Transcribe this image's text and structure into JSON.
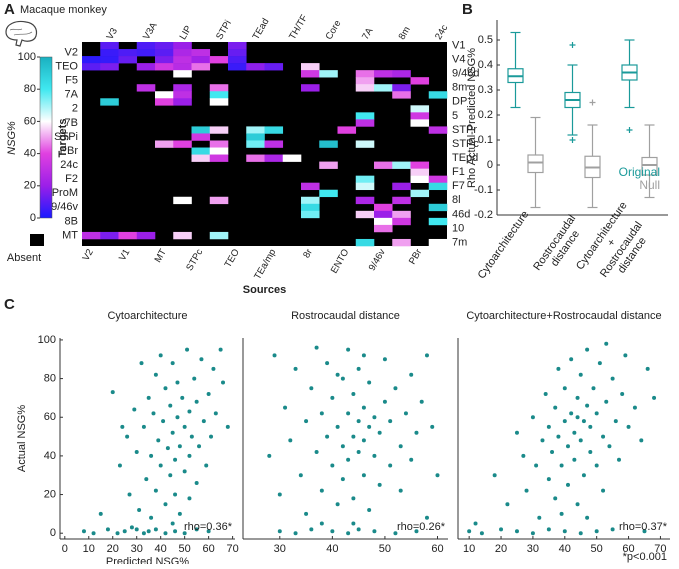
{
  "chart_data": [
    {
      "type": "heatmap",
      "panel_label": "A",
      "title": "Macaque monkey",
      "xlabel": "Sources",
      "ylabel": "Targets",
      "colorbar_label": "NSG%",
      "absent_label": "Absent",
      "absent_color": "#000000",
      "colormap": [
        "#1a1aff",
        "#9b1fe8",
        "#e040e0",
        "#ffffff",
        "#40e8f0",
        "#1ab0c0"
      ],
      "clim": [
        0,
        100
      ],
      "cticks": [
        0,
        20,
        40,
        60,
        80,
        100
      ],
      "targets": [
        "V1",
        "V2",
        "V4",
        "TEO",
        "9/46d",
        "F5",
        "8m",
        "7A",
        "DP",
        "2",
        "5",
        "7B",
        "STPr",
        "STPi",
        "STPc",
        "PBr",
        "TEpd",
        "24c",
        "F1",
        "F2",
        "F7",
        "ProM",
        "8l",
        "9/46v",
        "46d",
        "8B",
        "10",
        "MT",
        "7m"
      ],
      "sources": [
        "V2",
        "V3",
        "V1",
        "V3A",
        "MT",
        "LIP",
        "STPc",
        "STPi",
        "TEO",
        "TEad",
        "TEa/mp",
        "TH/TF",
        "8r",
        "Core",
        "ENTO",
        "7A",
        "9/46v",
        "8m",
        "PBr",
        "24c"
      ],
      "values": [
        [
          null,
          10,
          null,
          8,
          12,
          20,
          null,
          null,
          15,
          null,
          null,
          null,
          null,
          null,
          null,
          null,
          null,
          null,
          null,
          null
        ],
        [
          null,
          5,
          8,
          6,
          10,
          25,
          30,
          null,
          12,
          null,
          null,
          null,
          null,
          null,
          null,
          null,
          null,
          null,
          null,
          null
        ],
        [
          3,
          4,
          12,
          null,
          15,
          30,
          22,
          40,
          8,
          null,
          null,
          null,
          null,
          null,
          null,
          null,
          null,
          null,
          null,
          null
        ],
        [
          10,
          15,
          null,
          20,
          35,
          28,
          45,
          null,
          5,
          18,
          12,
          null,
          55,
          null,
          null,
          null,
          null,
          null,
          null,
          null
        ],
        [
          null,
          null,
          null,
          null,
          null,
          60,
          null,
          null,
          null,
          null,
          null,
          null,
          35,
          70,
          null,
          45,
          30,
          25,
          null,
          null
        ],
        [
          null,
          null,
          null,
          null,
          null,
          null,
          null,
          null,
          null,
          null,
          null,
          null,
          null,
          null,
          null,
          50,
          null,
          null,
          40,
          null
        ],
        [
          null,
          null,
          null,
          30,
          null,
          25,
          null,
          45,
          null,
          null,
          null,
          null,
          20,
          null,
          null,
          55,
          70,
          15,
          null,
          null
        ],
        [
          null,
          null,
          null,
          null,
          60,
          30,
          null,
          80,
          null,
          null,
          null,
          null,
          null,
          null,
          null,
          null,
          null,
          45,
          null,
          85
        ],
        [
          null,
          90,
          null,
          null,
          40,
          20,
          null,
          60,
          null,
          null,
          null,
          null,
          null,
          null,
          null,
          null,
          null,
          null,
          null,
          null
        ],
        [
          null,
          null,
          null,
          null,
          null,
          null,
          null,
          null,
          null,
          null,
          null,
          null,
          null,
          null,
          null,
          null,
          null,
          null,
          65,
          null
        ],
        [
          null,
          null,
          null,
          null,
          null,
          null,
          null,
          null,
          null,
          null,
          null,
          null,
          null,
          null,
          null,
          80,
          null,
          null,
          35,
          null
        ],
        [
          null,
          null,
          null,
          null,
          null,
          null,
          null,
          null,
          null,
          null,
          null,
          null,
          null,
          null,
          null,
          30,
          null,
          null,
          60,
          null
        ],
        [
          null,
          null,
          null,
          null,
          null,
          null,
          90,
          55,
          null,
          70,
          85,
          null,
          null,
          null,
          40,
          null,
          null,
          null,
          null,
          30
        ],
        [
          null,
          null,
          null,
          null,
          null,
          null,
          35,
          null,
          null,
          90,
          null,
          null,
          null,
          null,
          null,
          null,
          null,
          null,
          null,
          null
        ],
        [
          null,
          null,
          null,
          null,
          50,
          40,
          null,
          45,
          null,
          75,
          30,
          null,
          null,
          95,
          null,
          65,
          null,
          null,
          null,
          null
        ],
        [
          null,
          null,
          null,
          null,
          null,
          null,
          85,
          60,
          null,
          null,
          null,
          null,
          null,
          null,
          null,
          null,
          null,
          null,
          null,
          null
        ],
        [
          null,
          null,
          null,
          null,
          null,
          null,
          55,
          35,
          null,
          45,
          25,
          60,
          null,
          null,
          null,
          null,
          null,
          null,
          null,
          null
        ],
        [
          null,
          null,
          null,
          null,
          null,
          null,
          null,
          null,
          null,
          null,
          null,
          null,
          null,
          50,
          null,
          null,
          45,
          70,
          40,
          null
        ],
        [
          null,
          null,
          null,
          null,
          null,
          null,
          null,
          null,
          null,
          null,
          null,
          null,
          null,
          null,
          null,
          null,
          null,
          null,
          55,
          null
        ],
        [
          null,
          null,
          null,
          null,
          null,
          null,
          null,
          null,
          null,
          null,
          null,
          null,
          null,
          null,
          null,
          75,
          null,
          null,
          60,
          35
        ],
        [
          null,
          null,
          null,
          null,
          null,
          null,
          null,
          null,
          null,
          null,
          null,
          null,
          30,
          null,
          null,
          65,
          null,
          20,
          null,
          85
        ],
        [
          null,
          null,
          null,
          null,
          null,
          null,
          null,
          null,
          null,
          null,
          null,
          null,
          null,
          80,
          null,
          null,
          null,
          null,
          70,
          null
        ],
        [
          null,
          null,
          null,
          null,
          null,
          60,
          null,
          50,
          null,
          null,
          null,
          null,
          70,
          null,
          null,
          25,
          null,
          30,
          null,
          null
        ],
        [
          null,
          null,
          null,
          null,
          null,
          null,
          null,
          null,
          null,
          null,
          null,
          null,
          85,
          null,
          null,
          null,
          40,
          null,
          null,
          90
        ],
        [
          null,
          null,
          null,
          null,
          null,
          null,
          null,
          null,
          null,
          null,
          null,
          null,
          75,
          null,
          null,
          55,
          20,
          50,
          null,
          null
        ],
        [
          null,
          null,
          null,
          null,
          null,
          null,
          null,
          null,
          null,
          null,
          null,
          null,
          null,
          null,
          null,
          null,
          60,
          35,
          null,
          80
        ],
        [
          null,
          null,
          null,
          null,
          null,
          null,
          null,
          null,
          null,
          null,
          null,
          null,
          null,
          null,
          null,
          null,
          45,
          null,
          null,
          null
        ],
        [
          30,
          15,
          40,
          20,
          null,
          55,
          null,
          70,
          null,
          null,
          null,
          null,
          null,
          null,
          null,
          null,
          null,
          null,
          null,
          null
        ],
        [
          null,
          null,
          null,
          null,
          null,
          null,
          null,
          null,
          null,
          null,
          null,
          null,
          null,
          null,
          null,
          85,
          null,
          50,
          null,
          60
        ]
      ]
    },
    {
      "type": "box",
      "panel_label": "B",
      "ylabel": "Rho Actual-Predicted NSG%",
      "legend": "lower right",
      "categories": [
        "Cytoarchitecture",
        "Rostrocaudal distance",
        "Cytoarchitecture + Rostrocaudal distance"
      ],
      "ylim": [
        -0.2,
        0.58
      ],
      "yticks": [
        -0.2,
        -0.1,
        0,
        0.1,
        0.2,
        0.3,
        0.4,
        0.5
      ],
      "series": [
        {
          "name": "Original",
          "color": "#1a9a9a",
          "boxes": [
            {
              "whislo": 0.23,
              "q1": 0.33,
              "med": 0.355,
              "q3": 0.385,
              "whishi": 0.53,
              "fliers": []
            },
            {
              "whislo": 0.12,
              "q1": 0.23,
              "med": 0.26,
              "q3": 0.29,
              "whishi": 0.4,
              "fliers": [
                0.48,
                0.1
              ]
            },
            {
              "whislo": 0.23,
              "q1": 0.34,
              "med": 0.37,
              "q3": 0.4,
              "whishi": 0.5,
              "fliers": [
                0.14
              ]
            }
          ]
        },
        {
          "name": "Null",
          "color": "#a0a0a0",
          "boxes": [
            {
              "whislo": -0.17,
              "q1": -0.03,
              "med": 0.01,
              "q3": 0.04,
              "whishi": 0.19,
              "fliers": []
            },
            {
              "whislo": -0.17,
              "q1": -0.05,
              "med": -0.01,
              "q3": 0.035,
              "whishi": 0.16,
              "fliers": [
                0.25
              ]
            },
            {
              "whislo": -0.13,
              "q1": -0.04,
              "med": 0,
              "q3": 0.03,
              "whishi": 0.16,
              "fliers": []
            }
          ]
        }
      ]
    },
    {
      "type": "scatter",
      "panel_label": "C",
      "title": "Cytoarchitecture",
      "xlabel": "Predicted NSG%",
      "ylabel": "Actual NSG%",
      "annotation": "rho=0.36*",
      "color": "#1a8a8a",
      "xlim": [
        -2,
        71
      ],
      "xticks": [
        0,
        10,
        20,
        30,
        40,
        50,
        60,
        70
      ],
      "ylim": [
        -3,
        101
      ],
      "yticks": [
        0,
        20,
        40,
        60,
        80,
        100
      ],
      "x": [
        8,
        12,
        18,
        22,
        25,
        28,
        30,
        33,
        35,
        38,
        42,
        46,
        50,
        55,
        60,
        20,
        23,
        26,
        27,
        29,
        30,
        31,
        32,
        33,
        34,
        35,
        36,
        36,
        37,
        38,
        38,
        39,
        40,
        40,
        41,
        42,
        42,
        43,
        44,
        44,
        45,
        45,
        46,
        46,
        47,
        47,
        48,
        48,
        49,
        50,
        50,
        51,
        52,
        52,
        53,
        54,
        55,
        55,
        56,
        57,
        58,
        59,
        60,
        61,
        62,
        63,
        65,
        66,
        68,
        24,
        15,
        45,
        52
      ],
      "values": [
        1,
        0,
        2,
        0,
        1,
        3,
        2,
        0,
        1,
        2,
        0,
        1,
        0,
        2,
        1,
        73,
        35,
        50,
        20,
        64,
        42,
        12,
        88,
        55,
        28,
        70,
        40,
        8,
        62,
        82,
        22,
        48,
        35,
        92,
        58,
        15,
        75,
        44,
        30,
        66,
        52,
        88,
        38,
        20,
        60,
        78,
        45,
        10,
        70,
        55,
        32,
        95,
        63,
        40,
        50,
        80,
        26,
        68,
        45,
        90,
        58,
        35,
        72,
        50,
        85,
        62,
        95,
        78,
        55,
        55,
        10,
        5,
        18
      ]
    },
    {
      "type": "scatter",
      "title": "Rostrocaudal distance",
      "annotation": "rho=0.26*",
      "color": "#1a8a8a",
      "xlim": [
        23,
        62
      ],
      "xticks": [
        30,
        40,
        50,
        60
      ],
      "ylim": [
        -3,
        101
      ],
      "x": [
        30,
        33,
        36,
        40,
        43,
        45,
        48,
        52,
        56,
        28,
        29,
        30,
        31,
        32,
        33,
        34,
        35,
        35,
        36,
        37,
        38,
        38,
        39,
        39,
        40,
        40,
        41,
        41,
        42,
        42,
        42,
        43,
        43,
        43,
        44,
        44,
        44,
        45,
        45,
        45,
        46,
        46,
        46,
        47,
        47,
        47,
        48,
        48,
        49,
        49,
        50,
        50,
        51,
        51,
        52,
        53,
        53,
        54,
        55,
        55,
        56,
        57,
        58,
        59,
        60,
        58,
        44,
        41,
        46,
        38,
        37
      ],
      "values": [
        1,
        0,
        2,
        1,
        0,
        2,
        1,
        0,
        1,
        40,
        92,
        20,
        65,
        48,
        85,
        30,
        10,
        58,
        75,
        42,
        22,
        62,
        88,
        50,
        35,
        70,
        15,
        55,
        80,
        45,
        28,
        62,
        95,
        38,
        50,
        72,
        18,
        58,
        42,
        85,
        65,
        30,
        48,
        55,
        78,
        12,
        40,
        60,
        52,
        25,
        68,
        90,
        35,
        58,
        75,
        45,
        22,
        62,
        82,
        38,
        52,
        68,
        92,
        55,
        30,
        8,
        5,
        82,
        92,
        5,
        96
      ]
    },
    {
      "type": "scatter",
      "title": "Cytoarchitecture+Rostrocaudal distance",
      "annotation": "rho=0.37*",
      "note": "*p<0.001",
      "color": "#1a8a8a",
      "xlim": [
        6.5,
        73
      ],
      "xticks": [
        10,
        20,
        30,
        40,
        50,
        60,
        70
      ],
      "ylim": [
        -3,
        101
      ],
      "x": [
        10,
        14,
        20,
        25,
        30,
        35,
        40,
        45,
        50,
        55,
        65,
        12,
        18,
        22,
        25,
        27,
        28,
        30,
        31,
        32,
        33,
        34,
        35,
        35,
        36,
        37,
        37,
        38,
        38,
        39,
        40,
        40,
        41,
        41,
        42,
        42,
        43,
        43,
        44,
        44,
        45,
        45,
        46,
        46,
        47,
        47,
        48,
        48,
        49,
        50,
        50,
        51,
        52,
        52,
        53,
        54,
        55,
        56,
        57,
        58,
        59,
        60,
        62,
        64,
        66,
        68,
        44,
        39,
        47,
        53
      ],
      "values": [
        1,
        0,
        2,
        1,
        0,
        2,
        1,
        0,
        1,
        2,
        1,
        5,
        30,
        15,
        52,
        40,
        22,
        60,
        35,
        8,
        48,
        72,
        28,
        55,
        42,
        65,
        18,
        85,
        50,
        35,
        58,
        75,
        25,
        45,
        62,
        90,
        38,
        52,
        70,
        15,
        48,
        82,
        58,
        30,
        66,
        95,
        42,
        55,
        75,
        35,
        62,
        88,
        50,
        22,
        68,
        45,
        80,
        58,
        38,
        72,
        92,
        55,
        65,
        48,
        85,
        70,
        60,
        10,
        8,
        98
      ]
    }
  ]
}
